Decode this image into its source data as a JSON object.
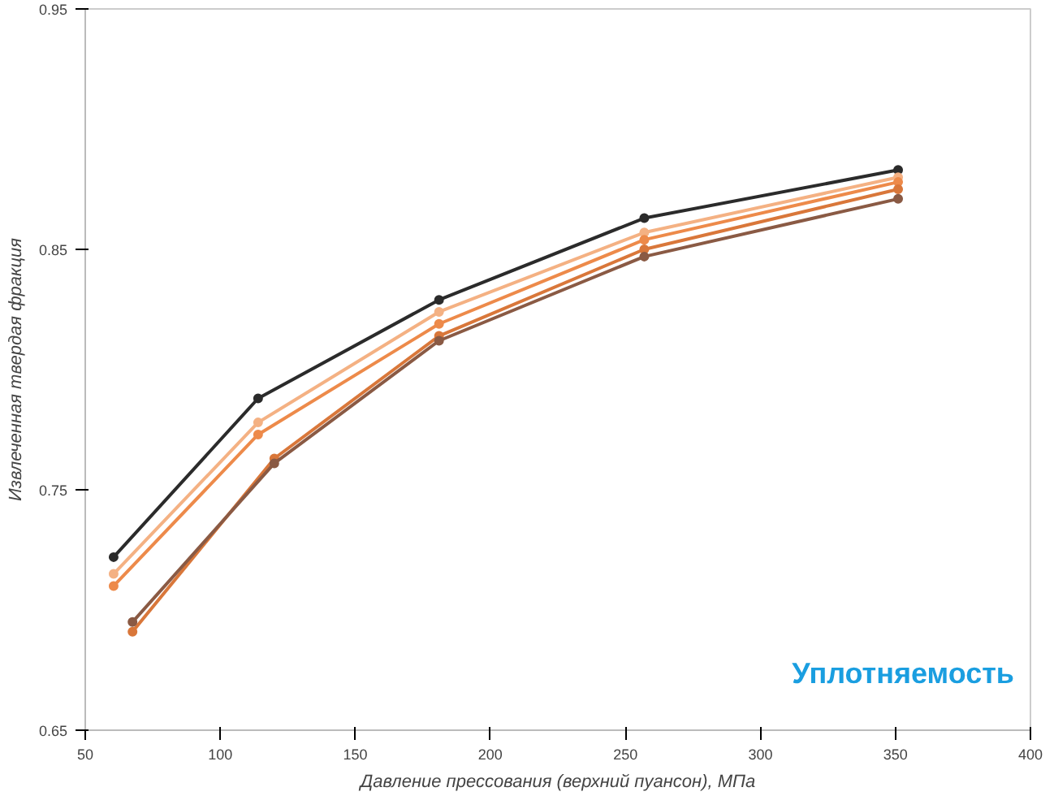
{
  "chart_data": {
    "type": "line",
    "xlabel": "Давление прессования (верхний пуансон), МПа",
    "ylabel": "Извлеченная твердая фракция",
    "xlim": [
      50,
      400
    ],
    "xticks": [
      50,
      100,
      150,
      200,
      250,
      300,
      350,
      400
    ],
    "ylim": [
      0.65,
      0.95
    ],
    "yticks": [
      0.65,
      0.75,
      0.85,
      0.95
    ],
    "grid": false,
    "marker": "circle",
    "line_style": "solid",
    "annotations": [
      "Уплотняемость"
    ],
    "series": [
      {
        "color": "#2b2b2b",
        "x": [
          60.5,
          114,
          181,
          257,
          351
        ],
        "values": [
          0.722,
          0.788,
          0.829,
          0.863,
          0.883
        ]
      },
      {
        "color": "#f4b183",
        "x": [
          60.5,
          114,
          181,
          257,
          351
        ],
        "values": [
          0.715,
          0.778,
          0.824,
          0.857,
          0.88
        ]
      },
      {
        "color": "#ed8a4a",
        "x": [
          60.5,
          114,
          181,
          257,
          351
        ],
        "values": [
          0.71,
          0.773,
          0.819,
          0.854,
          0.878
        ]
      },
      {
        "color": "#d9773a",
        "x": [
          67.5,
          120,
          181,
          257,
          351
        ],
        "values": [
          0.691,
          0.763,
          0.814,
          0.85,
          0.875
        ]
      },
      {
        "color": "#8a5a44",
        "x": [
          67.5,
          120,
          181,
          257,
          351
        ],
        "values": [
          0.695,
          0.761,
          0.812,
          0.847,
          0.871
        ]
      }
    ]
  }
}
